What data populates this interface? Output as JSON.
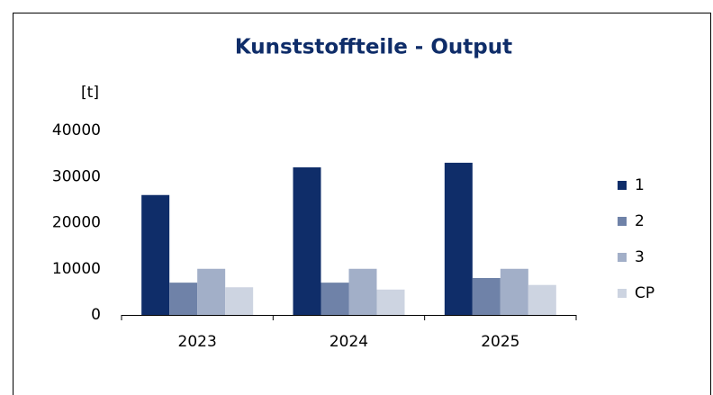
{
  "chart_data": {
    "type": "bar",
    "title": "Kunststoffteile - Output",
    "y_label": "[t]",
    "categories": [
      "2023",
      "2024",
      "2025"
    ],
    "series": [
      {
        "name": "1",
        "color": "#0f2d69",
        "values": [
          26000,
          32000,
          33000
        ]
      },
      {
        "name": "2",
        "color": "#6f82a8",
        "values": [
          7000,
          7000,
          8000
        ]
      },
      {
        "name": "3",
        "color": "#a2afc8",
        "values": [
          10000,
          10000,
          10000
        ]
      },
      {
        "name": "CP",
        "color": "#cdd4e1",
        "values": [
          6000,
          5500,
          6500
        ]
      }
    ],
    "ylim": [
      0,
      40000
    ],
    "yticks": [
      0,
      10000,
      20000,
      30000,
      40000
    ],
    "grid": false,
    "legend": "right"
  }
}
